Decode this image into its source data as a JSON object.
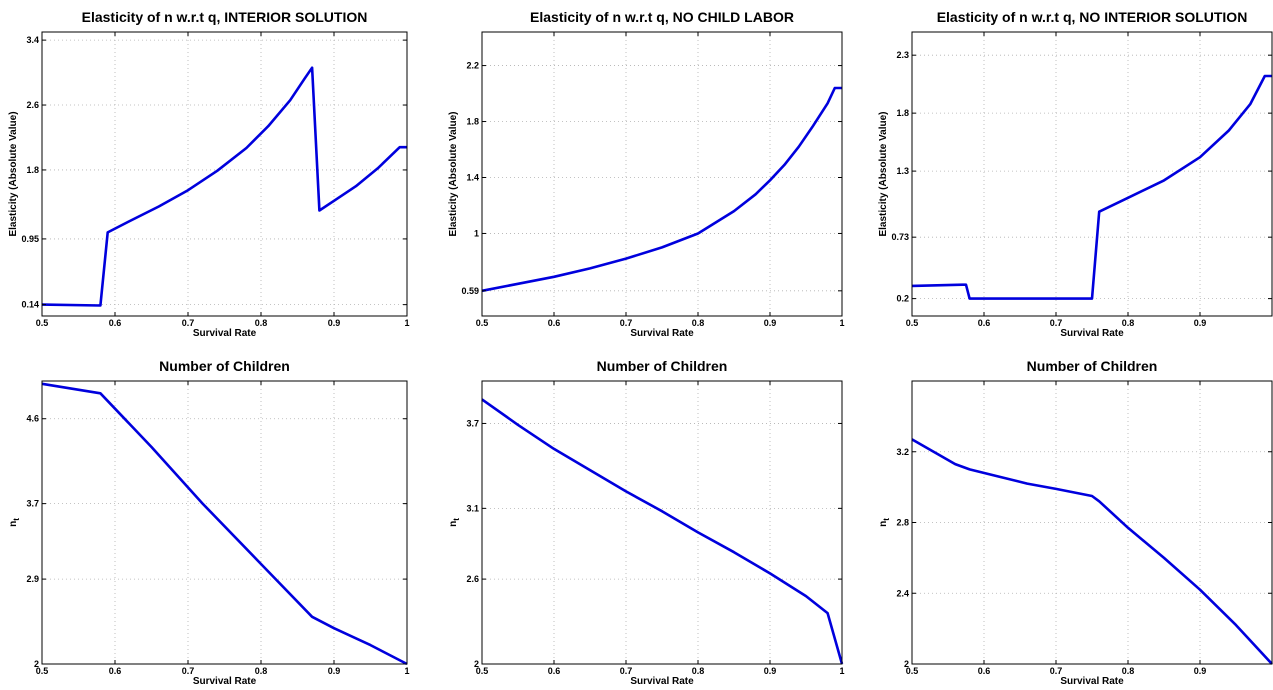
{
  "chart_data": [
    {
      "type": "line",
      "title": "Elasticity of n w.r.t q, INTERIOR SOLUTION",
      "xlabel": "Survival Rate",
      "ylabel": "Elasticity (Absolute Value)",
      "xlim": [
        0.5,
        1
      ],
      "ylim": [
        0.0,
        3.5
      ],
      "xticks": [
        0.5,
        0.6,
        0.7,
        0.8,
        0.9,
        1
      ],
      "xtick_labels": [
        "0.5",
        "0.6",
        "0.7",
        "0.8",
        "0.9",
        "1"
      ],
      "yticks": [
        0.14,
        0.95,
        1.8,
        2.6,
        3.4
      ],
      "ytick_labels": [
        "0.14",
        "0.95",
        "1.8",
        "2.6",
        "3.4"
      ],
      "grid": true,
      "color": "#0000dd",
      "series": [
        {
          "x": [
            0.5,
            0.58,
            0.59,
            0.62,
            0.66,
            0.7,
            0.74,
            0.78,
            0.81,
            0.84,
            0.86,
            0.87,
            0.88,
            0.9,
            0.93,
            0.96,
            0.99,
            1.0
          ],
          "y": [
            0.14,
            0.13,
            1.03,
            1.17,
            1.35,
            1.55,
            1.79,
            2.07,
            2.34,
            2.66,
            2.93,
            3.06,
            1.3,
            1.42,
            1.6,
            1.82,
            2.08,
            2.08
          ]
        }
      ]
    },
    {
      "type": "line",
      "title": "Elasticity of n w.r.t q, NO CHILD LABOR",
      "xlabel": "Survival Rate",
      "ylabel": "Elasticity (Absolute Value)",
      "xlim": [
        0.5,
        1
      ],
      "ylim": [
        0.41,
        2.44
      ],
      "xticks": [
        0.5,
        0.6,
        0.7,
        0.8,
        0.9,
        1
      ],
      "xtick_labels": [
        "0.5",
        "0.6",
        "0.7",
        "0.8",
        "0.9",
        "1"
      ],
      "yticks": [
        0.59,
        1,
        1.4,
        1.8,
        2.2
      ],
      "ytick_labels": [
        "0.59",
        "1",
        "1.4",
        "1.8",
        "2.2"
      ],
      "grid": true,
      "color": "#0000dd",
      "series": [
        {
          "x": [
            0.5,
            0.55,
            0.6,
            0.65,
            0.7,
            0.75,
            0.8,
            0.85,
            0.88,
            0.9,
            0.92,
            0.94,
            0.96,
            0.98,
            0.99,
            1.0
          ],
          "y": [
            0.59,
            0.64,
            0.69,
            0.75,
            0.82,
            0.9,
            1.0,
            1.16,
            1.28,
            1.38,
            1.49,
            1.62,
            1.77,
            1.93,
            2.04,
            2.04
          ]
        }
      ]
    },
    {
      "type": "line",
      "title": "Elasticity of n w.r.t q, NO INTERIOR SOLUTION",
      "xlabel": "Survival Rate",
      "ylabel": "Elasticity (Absolute Value)",
      "xlim": [
        0.5,
        1
      ],
      "ylim": [
        0.05,
        2.5
      ],
      "xticks": [
        0.5,
        0.6,
        0.7,
        0.8,
        0.9,
        1
      ],
      "xtick_labels": [
        "0.5",
        "0.6",
        "0.7",
        "0.8",
        "0.9",
        ""
      ],
      "yticks": [
        0.2,
        0.73,
        1.3,
        1.8,
        2.3
      ],
      "ytick_labels": [
        "0.2",
        "0.73",
        "1.3",
        "1.8",
        "2.3"
      ],
      "grid": true,
      "color": "#0000dd",
      "series": [
        {
          "x": [
            0.5,
            0.57,
            0.575,
            0.58,
            0.6,
            0.65,
            0.7,
            0.745,
            0.75,
            0.76,
            0.8,
            0.85,
            0.9,
            0.94,
            0.97,
            0.99,
            1.0
          ],
          "y": [
            0.31,
            0.32,
            0.32,
            0.2,
            0.2,
            0.2,
            0.2,
            0.2,
            0.2,
            0.95,
            1.07,
            1.22,
            1.42,
            1.65,
            1.88,
            2.12,
            2.12
          ]
        }
      ]
    },
    {
      "type": "line",
      "title": "Number of Children",
      "xlabel": "Survival Rate",
      "ylabel": "n_t",
      "xlim": [
        0.5,
        1
      ],
      "ylim": [
        2,
        5.0
      ],
      "xticks": [
        0.5,
        0.6,
        0.7,
        0.8,
        0.9,
        1
      ],
      "xtick_labels": [
        "0.5",
        "0.6",
        "0.7",
        "0.8",
        "0.9",
        "1"
      ],
      "yticks": [
        2,
        2.9,
        3.7,
        4.6
      ],
      "ytick_labels": [
        "2",
        "2.9",
        "3.7",
        "4.6"
      ],
      "grid": true,
      "color": "#0000dd",
      "series": [
        {
          "x": [
            0.5,
            0.58,
            0.65,
            0.72,
            0.8,
            0.87,
            0.9,
            0.95,
            1.0
          ],
          "y": [
            4.97,
            4.87,
            4.3,
            3.7,
            3.06,
            2.5,
            2.38,
            2.2,
            2.0
          ]
        }
      ]
    },
    {
      "type": "line",
      "title": "Number of Children",
      "xlabel": "Survival Rate",
      "ylabel": "n_t",
      "xlim": [
        0.5,
        1
      ],
      "ylim": [
        2,
        4.0
      ],
      "xticks": [
        0.5,
        0.6,
        0.7,
        0.8,
        0.9,
        1
      ],
      "xtick_labels": [
        "0.5",
        "0.6",
        "0.7",
        "0.8",
        "0.9",
        "1"
      ],
      "yticks": [
        2,
        2.6,
        3.1,
        3.7
      ],
      "ytick_labels": [
        "2",
        "2.6",
        "3.1",
        "3.7"
      ],
      "grid": true,
      "color": "#0000dd",
      "series": [
        {
          "x": [
            0.5,
            0.55,
            0.6,
            0.65,
            0.7,
            0.75,
            0.8,
            0.85,
            0.9,
            0.95,
            0.98,
            1.0
          ],
          "y": [
            3.87,
            3.69,
            3.52,
            3.37,
            3.22,
            3.08,
            2.93,
            2.79,
            2.64,
            2.48,
            2.36,
            2.0
          ]
        }
      ]
    },
    {
      "type": "line",
      "title": "Number of Children",
      "xlabel": "Survival Rate",
      "ylabel": "n_t",
      "xlim": [
        0.5,
        1
      ],
      "ylim": [
        2,
        3.6
      ],
      "xticks": [
        0.5,
        0.6,
        0.7,
        0.8,
        0.9,
        1
      ],
      "xtick_labels": [
        "0.5",
        "0.6",
        "0.7",
        "0.8",
        "0.9",
        ""
      ],
      "yticks": [
        2,
        2.4,
        2.8,
        3.2
      ],
      "ytick_labels": [
        "2",
        "2.4",
        "2.8",
        "3.2"
      ],
      "grid": true,
      "color": "#0000dd",
      "series": [
        {
          "x": [
            0.5,
            0.53,
            0.56,
            0.58,
            0.62,
            0.66,
            0.7,
            0.75,
            0.76,
            0.8,
            0.85,
            0.9,
            0.95,
            1.0
          ],
          "y": [
            3.27,
            3.2,
            3.13,
            3.1,
            3.06,
            3.02,
            2.99,
            2.95,
            2.92,
            2.77,
            2.6,
            2.42,
            2.22,
            2.0
          ]
        }
      ]
    }
  ]
}
